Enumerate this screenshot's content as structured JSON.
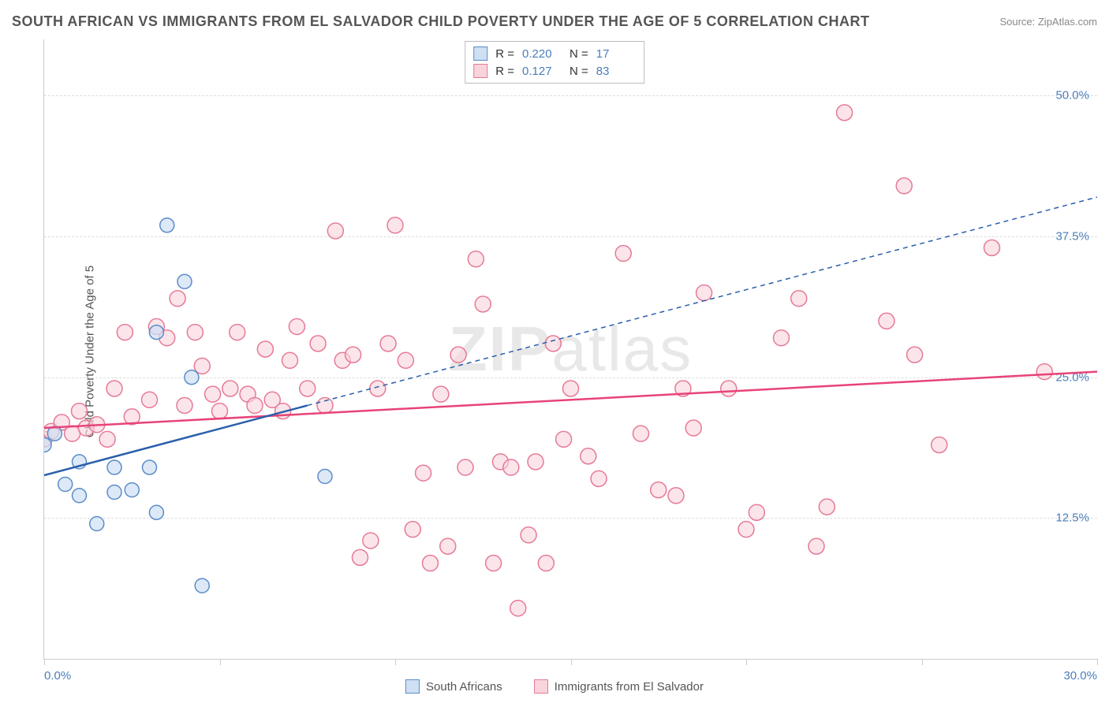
{
  "header": {
    "title": "SOUTH AFRICAN VS IMMIGRANTS FROM EL SALVADOR CHILD POVERTY UNDER THE AGE OF 5 CORRELATION CHART",
    "source": "Source: ZipAtlas.com"
  },
  "ylabel": "Child Poverty Under the Age of 5",
  "watermark": {
    "bold": "ZIP",
    "light": "atlas"
  },
  "axes": {
    "xlim": [
      0,
      30
    ],
    "ylim": [
      0,
      55
    ],
    "x_ticks_label": {
      "left": "0.0%",
      "right": "30.0%"
    },
    "x_tick_positions": [
      0,
      5,
      10,
      15,
      20,
      25,
      30
    ],
    "y_ticks": [
      {
        "v": 12.5,
        "label": "12.5%"
      },
      {
        "v": 25.0,
        "label": "25.0%"
      },
      {
        "v": 37.5,
        "label": "37.5%"
      },
      {
        "v": 50.0,
        "label": "50.0%"
      }
    ]
  },
  "colors": {
    "blue_fill": "#cfe0f3",
    "blue_stroke": "#5b8cc9",
    "blue_line": "#2a5faa",
    "pink_fill": "#f9d4dc",
    "pink_stroke": "#e67a95",
    "pink_line": "#e84378",
    "axis_text": "#4a7ebb",
    "grid": "#dddddd"
  },
  "series": {
    "south_africans": {
      "label": "South Africans",
      "R": "0.220",
      "N": "17",
      "line": {
        "x1": 0,
        "y1": 16.3,
        "x2": 7.5,
        "y2": 22.5,
        "dashed_to": {
          "x": 30,
          "y": 41.0
        }
      },
      "marker_radius": 9,
      "points": [
        [
          0.0,
          19.0
        ],
        [
          0.3,
          20.0
        ],
        [
          0.6,
          15.5
        ],
        [
          1.0,
          14.5
        ],
        [
          1.0,
          17.5
        ],
        [
          1.5,
          12.0
        ],
        [
          2.0,
          14.8
        ],
        [
          2.0,
          17.0
        ],
        [
          2.5,
          15.0
        ],
        [
          3.0,
          17.0
        ],
        [
          3.2,
          13.0
        ],
        [
          3.2,
          29.0
        ],
        [
          3.5,
          38.5
        ],
        [
          4.0,
          33.5
        ],
        [
          4.2,
          25.0
        ],
        [
          4.5,
          6.5
        ],
        [
          8.0,
          16.2
        ]
      ]
    },
    "el_salvador": {
      "label": "Immigrants from El Salvador",
      "R": "0.127",
      "N": "83",
      "line": {
        "x1": 0,
        "y1": 20.5,
        "x2": 30,
        "y2": 25.5
      },
      "marker_radius": 10,
      "points": [
        [
          0.0,
          19.5
        ],
        [
          0.2,
          20.2
        ],
        [
          0.5,
          21.0
        ],
        [
          0.8,
          20.0
        ],
        [
          1.0,
          22.0
        ],
        [
          1.2,
          20.5
        ],
        [
          1.5,
          20.8
        ],
        [
          1.8,
          19.5
        ],
        [
          2.0,
          24.0
        ],
        [
          2.3,
          29.0
        ],
        [
          2.5,
          21.5
        ],
        [
          3.0,
          23.0
        ],
        [
          3.2,
          29.5
        ],
        [
          3.5,
          28.5
        ],
        [
          3.8,
          32.0
        ],
        [
          4.0,
          22.5
        ],
        [
          4.3,
          29.0
        ],
        [
          4.5,
          26.0
        ],
        [
          4.8,
          23.5
        ],
        [
          5.0,
          22.0
        ],
        [
          5.3,
          24.0
        ],
        [
          5.5,
          29.0
        ],
        [
          5.8,
          23.5
        ],
        [
          6.0,
          22.5
        ],
        [
          6.3,
          27.5
        ],
        [
          6.5,
          23.0
        ],
        [
          6.8,
          22.0
        ],
        [
          7.0,
          26.5
        ],
        [
          7.2,
          29.5
        ],
        [
          7.5,
          24.0
        ],
        [
          7.8,
          28.0
        ],
        [
          8.0,
          22.5
        ],
        [
          8.3,
          38.0
        ],
        [
          8.5,
          26.5
        ],
        [
          8.8,
          27.0
        ],
        [
          9.0,
          9.0
        ],
        [
          9.3,
          10.5
        ],
        [
          9.5,
          24.0
        ],
        [
          9.8,
          28.0
        ],
        [
          10.0,
          38.5
        ],
        [
          10.3,
          26.5
        ],
        [
          10.5,
          11.5
        ],
        [
          10.8,
          16.5
        ],
        [
          11.0,
          8.5
        ],
        [
          11.3,
          23.5
        ],
        [
          11.5,
          10.0
        ],
        [
          11.8,
          27.0
        ],
        [
          12.0,
          17.0
        ],
        [
          12.3,
          35.5
        ],
        [
          12.5,
          31.5
        ],
        [
          12.8,
          8.5
        ],
        [
          13.0,
          17.5
        ],
        [
          13.3,
          17.0
        ],
        [
          13.5,
          4.5
        ],
        [
          13.8,
          11.0
        ],
        [
          14.0,
          17.5
        ],
        [
          14.3,
          8.5
        ],
        [
          14.5,
          28.0
        ],
        [
          14.8,
          19.5
        ],
        [
          15.0,
          24.0
        ],
        [
          15.5,
          18.0
        ],
        [
          15.8,
          16.0
        ],
        [
          16.5,
          36.0
        ],
        [
          17.0,
          20.0
        ],
        [
          17.5,
          15.0
        ],
        [
          18.0,
          14.5
        ],
        [
          18.2,
          24.0
        ],
        [
          18.5,
          20.5
        ],
        [
          18.8,
          32.5
        ],
        [
          19.5,
          24.0
        ],
        [
          20.0,
          11.5
        ],
        [
          20.3,
          13.0
        ],
        [
          21.0,
          28.5
        ],
        [
          21.5,
          32.0
        ],
        [
          22.0,
          10.0
        ],
        [
          22.3,
          13.5
        ],
        [
          22.8,
          48.5
        ],
        [
          24.0,
          30.0
        ],
        [
          24.5,
          42.0
        ],
        [
          24.8,
          27.0
        ],
        [
          25.5,
          19.0
        ],
        [
          27.0,
          36.5
        ],
        [
          28.5,
          25.5
        ]
      ]
    }
  }
}
